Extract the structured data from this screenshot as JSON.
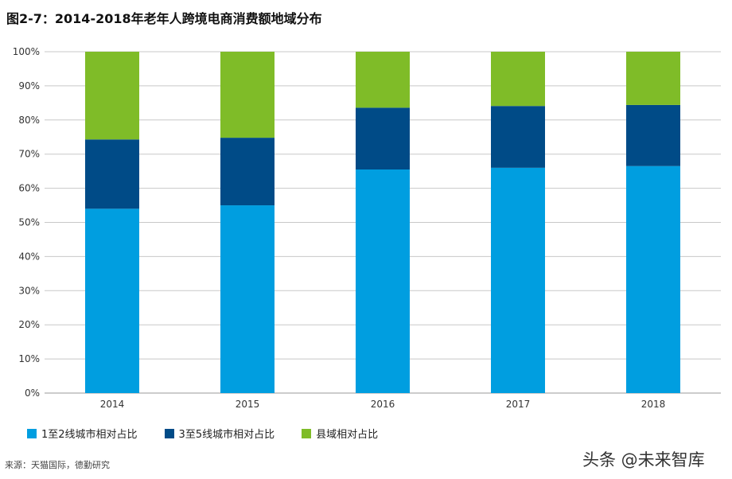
{
  "chart_data": {
    "type": "bar",
    "stacked": true,
    "title": "图2-7：2014-2018年老年人跨境电商消费额地域分布",
    "xlabel": "",
    "ylabel": "",
    "categories": [
      "2014",
      "2015",
      "2016",
      "2017",
      "2018"
    ],
    "series": [
      {
        "name": "1至2线城市相对占比",
        "color": "#009ee0",
        "values": [
          54,
          55,
          65.5,
          66,
          66.5
        ]
      },
      {
        "name": "3至5线城市相对占比",
        "color": "#004b87",
        "values": [
          20.3,
          19.8,
          18.1,
          18.1,
          17.9
        ]
      },
      {
        "name": "县域相对占比",
        "color": "#7fbc28",
        "values": [
          25.7,
          25.2,
          16.4,
          15.9,
          15.6
        ]
      }
    ],
    "ylim": [
      0,
      100
    ],
    "yticks": [
      "0%",
      "10%",
      "20%",
      "30%",
      "40%",
      "50%",
      "60%",
      "70%",
      "80%",
      "90%",
      "100%"
    ],
    "grid": true,
    "legend_position": "bottom-left"
  },
  "source": "来源：天猫国际，德勤研究",
  "watermark": "头条 @未来智库"
}
